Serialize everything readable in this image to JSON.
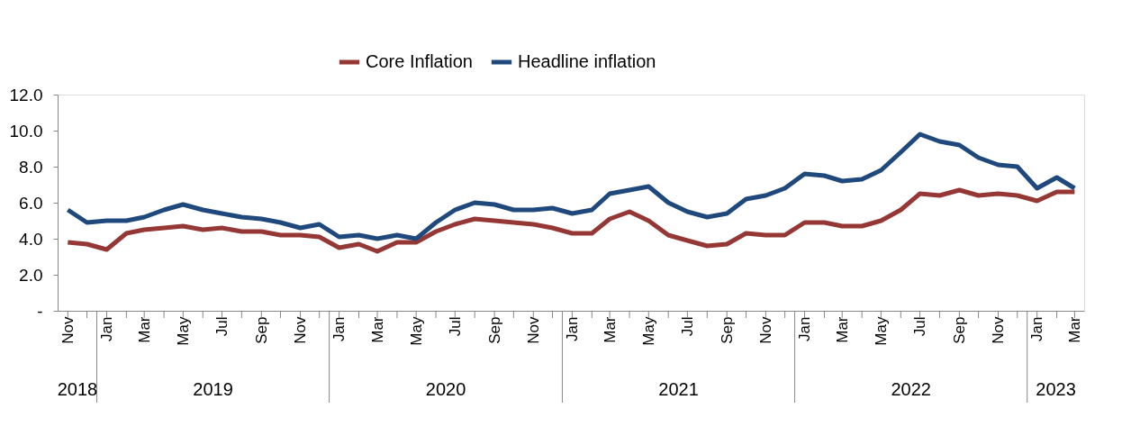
{
  "chart_data": {
    "type": "line",
    "x": [
      "2018-11",
      "2018-12",
      "2019-01",
      "2019-02",
      "2019-03",
      "2019-04",
      "2019-05",
      "2019-06",
      "2019-07",
      "2019-08",
      "2019-09",
      "2019-10",
      "2019-11",
      "2019-12",
      "2020-01",
      "2020-02",
      "2020-03",
      "2020-04",
      "2020-05",
      "2020-06",
      "2020-07",
      "2020-08",
      "2020-09",
      "2020-10",
      "2020-11",
      "2020-12",
      "2021-01",
      "2021-02",
      "2021-03",
      "2021-04",
      "2021-05",
      "2021-06",
      "2021-07",
      "2021-08",
      "2021-09",
      "2021-10",
      "2021-11",
      "2021-12",
      "2022-01",
      "2022-02",
      "2022-03",
      "2022-04",
      "2022-05",
      "2022-06",
      "2022-07",
      "2022-08",
      "2022-09",
      "2022-10",
      "2022-11",
      "2022-12",
      "2023-01",
      "2023-02",
      "2023-03"
    ],
    "series": [
      {
        "name": "Core Inflation",
        "color": "#953735",
        "values": [
          3.8,
          3.7,
          3.4,
          4.3,
          4.5,
          4.6,
          4.7,
          4.5,
          4.6,
          4.4,
          4.4,
          4.2,
          4.2,
          4.1,
          3.5,
          3.7,
          3.3,
          3.8,
          3.8,
          4.4,
          4.8,
          5.1,
          5.0,
          4.9,
          4.8,
          4.6,
          4.3,
          4.3,
          5.1,
          5.5,
          5.0,
          4.2,
          3.9,
          3.6,
          3.7,
          4.3,
          4.2,
          4.2,
          4.9,
          4.9,
          4.7,
          4.7,
          5.0,
          5.6,
          6.5,
          6.4,
          6.7,
          6.4,
          6.5,
          6.4,
          6.1,
          6.6,
          6.6
        ]
      },
      {
        "name": "Headline inflation",
        "color": "#1f497d",
        "values": [
          5.6,
          4.9,
          5.0,
          5.0,
          5.2,
          5.6,
          5.9,
          5.6,
          5.4,
          5.2,
          5.1,
          4.9,
          4.6,
          4.8,
          4.1,
          4.2,
          4.0,
          4.2,
          4.0,
          4.9,
          5.6,
          6.0,
          5.9,
          5.6,
          5.6,
          5.7,
          5.4,
          5.6,
          6.5,
          6.7,
          6.9,
          6.0,
          5.5,
          5.2,
          5.4,
          6.2,
          6.4,
          6.8,
          7.6,
          7.5,
          7.2,
          7.3,
          7.8,
          8.8,
          9.8,
          9.4,
          9.2,
          8.5,
          8.1,
          8.0,
          6.8,
          7.4,
          6.8
        ]
      }
    ],
    "xlim": [
      "2018-10-16",
      "2023-03-16"
    ],
    "xticks": [
      {
        "value": "2018-11",
        "label": "Nov"
      },
      {
        "value": "2018-12",
        "label": null
      },
      {
        "value": "2019-01",
        "label": "Jan"
      },
      {
        "value": "2019-02",
        "label": null
      },
      {
        "value": "2019-03",
        "label": "Mar"
      },
      {
        "value": "2019-04",
        "label": null
      },
      {
        "value": "2019-05",
        "label": "May"
      },
      {
        "value": "2019-06",
        "label": null
      },
      {
        "value": "2019-07",
        "label": "Jul"
      },
      {
        "value": "2019-08",
        "label": null
      },
      {
        "value": "2019-09",
        "label": "Sep"
      },
      {
        "value": "2019-10",
        "label": null
      },
      {
        "value": "2019-11",
        "label": "Nov"
      },
      {
        "value": "2019-12",
        "label": null
      },
      {
        "value": "2020-01",
        "label": "Jan"
      },
      {
        "value": "2020-02",
        "label": null
      },
      {
        "value": "2020-03",
        "label": "Mar"
      },
      {
        "value": "2020-04",
        "label": null
      },
      {
        "value": "2020-05",
        "label": "May"
      },
      {
        "value": "2020-06",
        "label": null
      },
      {
        "value": "2020-07",
        "label": "Jul"
      },
      {
        "value": "2020-08",
        "label": null
      },
      {
        "value": "2020-09",
        "label": "Sep"
      },
      {
        "value": "2020-10",
        "label": null
      },
      {
        "value": "2020-11",
        "label": "Nov"
      },
      {
        "value": "2020-12",
        "label": null
      },
      {
        "value": "2021-01",
        "label": "Jan"
      },
      {
        "value": "2021-02",
        "label": null
      },
      {
        "value": "2021-03",
        "label": "Mar"
      },
      {
        "value": "2021-04",
        "label": null
      },
      {
        "value": "2021-05",
        "label": "May"
      },
      {
        "value": "2021-06",
        "label": null
      },
      {
        "value": "2021-07",
        "label": "Jul"
      },
      {
        "value": "2021-08",
        "label": null
      },
      {
        "value": "2021-09",
        "label": "Sep"
      },
      {
        "value": "2021-10",
        "label": null
      },
      {
        "value": "2021-11",
        "label": "Nov"
      },
      {
        "value": "2021-12",
        "label": null
      },
      {
        "value": "2022-01",
        "label": "Jan"
      },
      {
        "value": "2022-02",
        "label": null
      },
      {
        "value": "2022-03",
        "label": "Mar"
      },
      {
        "value": "2022-04",
        "label": null
      },
      {
        "value": "2022-05",
        "label": "May"
      },
      {
        "value": "2022-06",
        "label": null
      },
      {
        "value": "2022-07",
        "label": "Jul"
      },
      {
        "value": "2022-08",
        "label": null
      },
      {
        "value": "2022-09",
        "label": "Sep"
      },
      {
        "value": "2022-10",
        "label": null
      },
      {
        "value": "2022-11",
        "label": "Nov"
      },
      {
        "value": "2022-12",
        "label": null
      },
      {
        "value": "2023-01",
        "label": "Jan"
      },
      {
        "value": "2023-02",
        "label": null
      },
      {
        "value": "2023-03",
        "label": "Mar"
      }
    ],
    "ylim": [
      0,
      12
    ],
    "yticks": [
      {
        "value": 0,
        "label": "-"
      },
      {
        "value": 2,
        "label": "2.0"
      },
      {
        "value": 4,
        "label": "4.0"
      },
      {
        "value": 6,
        "label": "6.0"
      },
      {
        "value": 8,
        "label": "8.0"
      },
      {
        "value": 10,
        "label": "10.0"
      },
      {
        "value": 12,
        "label": "12.0"
      }
    ],
    "annotations": [
      "2018",
      "2019",
      "2020",
      "2021",
      "2022",
      "2023"
    ],
    "legend": "top",
    "grid": false,
    "marker": "none",
    "line_style": "solid"
  }
}
